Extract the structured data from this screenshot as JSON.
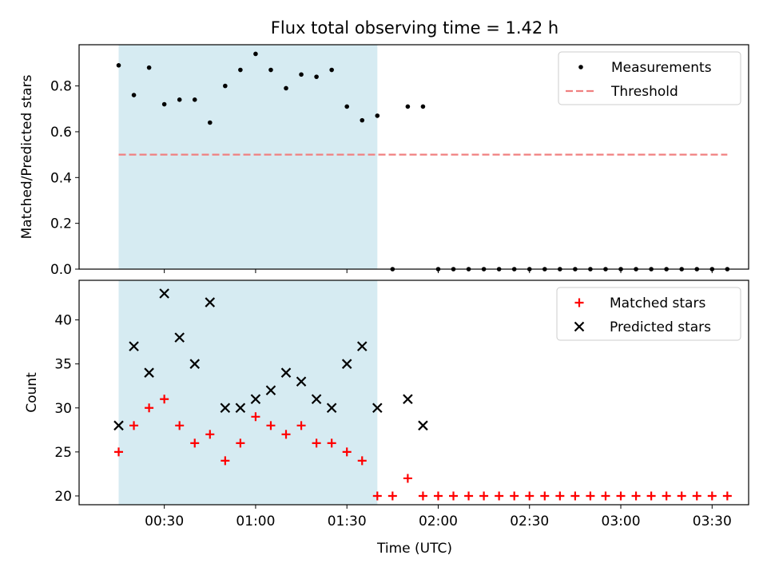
{
  "figure": {
    "title": "Flux total observing time = 1.42 h",
    "xlabel": "Time (UTC)"
  },
  "chart_data": [
    {
      "type": "scatter",
      "ylabel": "Matched/Predicted stars",
      "ylim": [
        0,
        0.98
      ],
      "yticks": [
        0.0,
        0.2,
        0.4,
        0.6,
        0.8
      ],
      "ytick_labels": [
        "0.0",
        "0.2",
        "0.4",
        "0.6",
        "0.8"
      ],
      "xlim": [
        "00:02",
        "03:42"
      ],
      "shaded_span": [
        "00:15",
        "01:40"
      ],
      "shaded_color": "#add8e6",
      "legend_position": "top-right",
      "series": [
        {
          "name": "Measurements",
          "marker": "dot",
          "color": "#000000",
          "x": [
            "00:15",
            "00:20",
            "00:25",
            "00:30",
            "00:35",
            "00:40",
            "00:45",
            "00:50",
            "00:55",
            "01:00",
            "01:05",
            "01:10",
            "01:15",
            "01:20",
            "01:25",
            "01:30",
            "01:35",
            "01:40",
            "01:45",
            "01:50",
            "01:55",
            "02:00",
            "02:05",
            "02:10",
            "02:15",
            "02:20",
            "02:25",
            "02:30",
            "02:35",
            "02:40",
            "02:45",
            "02:50",
            "02:55",
            "03:00",
            "03:05",
            "03:10",
            "03:15",
            "03:20",
            "03:25",
            "03:30",
            "03:35"
          ],
          "y": [
            0.89,
            0.76,
            0.88,
            0.72,
            0.74,
            0.74,
            0.64,
            0.8,
            0.87,
            0.94,
            0.87,
            0.79,
            0.85,
            0.84,
            0.87,
            0.71,
            0.65,
            0.67,
            0,
            0.71,
            0.71,
            0,
            0,
            0,
            0,
            0,
            0,
            0,
            0,
            0,
            0,
            0,
            0,
            0,
            0,
            0,
            0,
            0,
            0,
            0,
            0
          ]
        },
        {
          "name": "Threshold",
          "marker": "dashed-line",
          "color": "#f08080",
          "x": [
            "00:15",
            "03:35"
          ],
          "y": [
            0.5,
            0.5
          ]
        }
      ]
    },
    {
      "type": "scatter",
      "ylabel": "Count",
      "ylim": [
        19,
        44.5
      ],
      "yticks": [
        20,
        25,
        30,
        35,
        40
      ],
      "ytick_labels": [
        "20",
        "25",
        "30",
        "35",
        "40"
      ],
      "xlim": [
        "00:02",
        "03:42"
      ],
      "xticks": [
        "00:30",
        "01:00",
        "01:30",
        "02:00",
        "02:30",
        "03:00",
        "03:30"
      ],
      "xtick_labels": [
        "00:30",
        "01:00",
        "01:30",
        "02:00",
        "02:30",
        "03:00",
        "03:30"
      ],
      "shaded_span": [
        "00:15",
        "01:40"
      ],
      "shaded_color": "#add8e6",
      "legend_position": "top-right",
      "series": [
        {
          "name": "Matched stars",
          "marker": "plus",
          "color": "#ff0000",
          "x": [
            "00:15",
            "00:20",
            "00:25",
            "00:30",
            "00:35",
            "00:40",
            "00:45",
            "00:50",
            "00:55",
            "01:00",
            "01:05",
            "01:10",
            "01:15",
            "01:20",
            "01:25",
            "01:30",
            "01:35",
            "01:40",
            "01:45",
            "01:50",
            "01:55",
            "02:00",
            "02:05",
            "02:10",
            "02:15",
            "02:20",
            "02:25",
            "02:30",
            "02:35",
            "02:40",
            "02:45",
            "02:50",
            "02:55",
            "03:00",
            "03:05",
            "03:10",
            "03:15",
            "03:20",
            "03:25",
            "03:30",
            "03:35"
          ],
          "y": [
            25,
            28,
            30,
            31,
            28,
            26,
            27,
            24,
            26,
            29,
            28,
            27,
            28,
            26,
            26,
            25,
            24,
            20,
            20,
            22,
            20,
            20,
            20,
            20,
            20,
            20,
            20,
            20,
            20,
            20,
            20,
            20,
            20,
            20,
            20,
            20,
            20,
            20,
            20,
            20,
            20
          ]
        },
        {
          "name": "Predicted stars",
          "marker": "x",
          "color": "#000000",
          "x": [
            "00:15",
            "00:20",
            "00:25",
            "00:30",
            "00:35",
            "00:40",
            "00:45",
            "00:50",
            "00:55",
            "01:00",
            "01:05",
            "01:10",
            "01:15",
            "01:20",
            "01:25",
            "01:30",
            "01:35",
            "01:40",
            "01:50",
            "01:55"
          ],
          "y": [
            28,
            37,
            34,
            43,
            38,
            35,
            42,
            30,
            30,
            31,
            32,
            34,
            33,
            31,
            30,
            35,
            37,
            30,
            31,
            28
          ]
        }
      ]
    }
  ]
}
